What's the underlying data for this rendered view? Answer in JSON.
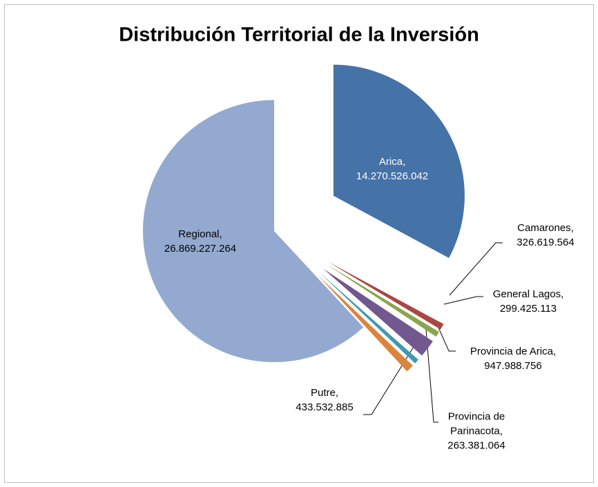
{
  "chart_data": {
    "type": "pie",
    "title": "Distribución Territorial de la Inversión",
    "categories": [
      "Arica,",
      "Camarones,",
      "General Lagos,",
      "Provincia de Arica,",
      "Provincia de Parinacota,",
      "Putre,",
      "Regional,"
    ],
    "values": [
      14270526042,
      326619564,
      299425113,
      947988756,
      263381064,
      433532885,
      26869227264
    ],
    "value_labels": [
      "14.270.526.042",
      "326.619.564",
      "299.425.113",
      "947.988.756",
      "263.381.064",
      "433.532.885",
      "26.869.227.264"
    ],
    "colors": [
      "#4572a7",
      "#aa4643",
      "#89a54e",
      "#71588f",
      "#4198af",
      "#db843d",
      "#93a9cf"
    ]
  }
}
